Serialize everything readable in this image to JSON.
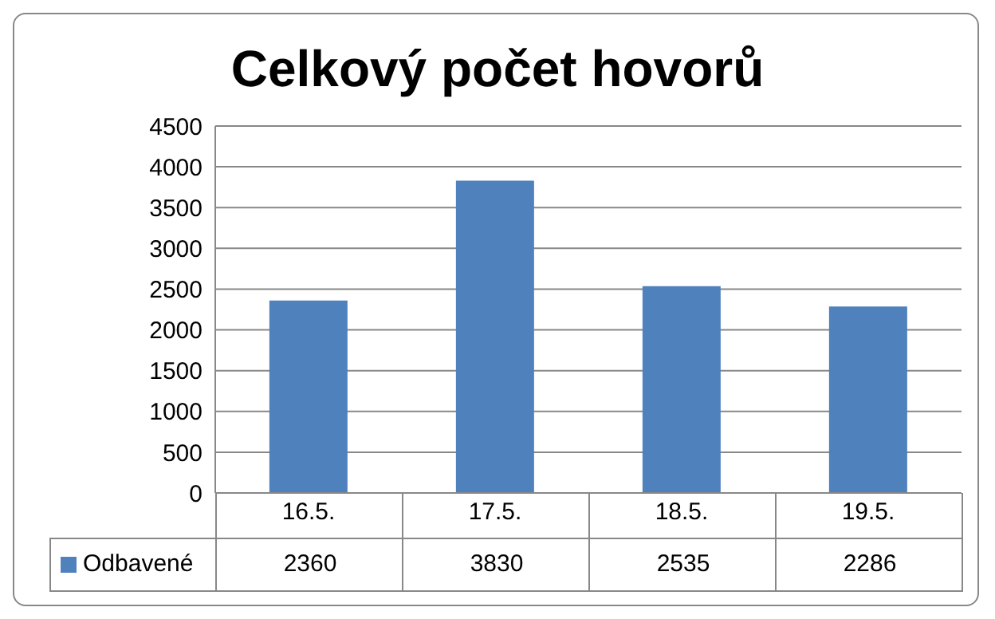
{
  "chart_data": {
    "type": "bar",
    "title": "Celkový počet hovorů",
    "categories": [
      "16.5.",
      "17.5.",
      "18.5.",
      "19.5."
    ],
    "series": [
      {
        "name": "Odbavené",
        "color": "#4f81bd",
        "values": [
          2360,
          3830,
          2535,
          2286
        ]
      }
    ],
    "ylim": [
      0,
      4500
    ],
    "yticks": [
      0,
      500,
      1000,
      1500,
      2000,
      2500,
      3000,
      3500,
      4000,
      4500
    ],
    "grid": "y",
    "legend": "bottom",
    "data_labels": true
  }
}
